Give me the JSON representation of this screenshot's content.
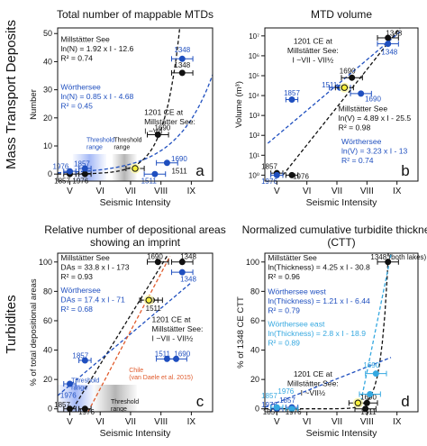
{
  "figure": {
    "row_labels": [
      "Mass Transport Deposits",
      "Turbidites"
    ],
    "colors": {
      "black": "#111111",
      "blue": "#1f4fbf",
      "light_blue": "#35a8e0",
      "red": "#e05a2b",
      "highlight": "#f6ef3a"
    }
  },
  "chart_data": [
    {
      "panel": "a",
      "type": "scatter",
      "title": "Total number of mappable MTDs",
      "xlabel": "Seismic Intensity",
      "ylabel": "Number",
      "xlim": [
        4.6,
        9.7
      ],
      "ylim": [
        -2.5,
        52
      ],
      "xticks": [
        5,
        6,
        7,
        8,
        9
      ],
      "xticklabels": [
        "V",
        "VI",
        "VII",
        "VIII",
        "IX"
      ],
      "yticks": [
        0,
        10,
        20,
        30,
        40,
        50
      ],
      "yticklabels": [
        "0",
        "10",
        "20",
        "30",
        "40",
        "50"
      ],
      "annotations": [
        {
          "text": [
            "Millstätter See",
            "ln(N) = 1.92 x I - 12.6",
            "R² = 0.74"
          ],
          "color": "black",
          "dx": 4.7,
          "dy": 47
        },
        {
          "text": [
            "Wörthersee",
            "ln(N) = 0.85 x I - 4.68",
            "R² = 0.45"
          ],
          "color": "blue",
          "dx": 4.7,
          "dy": 30
        },
        {
          "text": [
            "1201 CE at",
            "Millstätter See:",
            "I ~VII"
          ],
          "color": "black",
          "dx": 7.45,
          "dy": 21
        },
        {
          "text": [
            "Threshold",
            "range"
          ],
          "color": "blue",
          "dx": 5.55,
          "dy": 11.5
        },
        {
          "text": [
            "Threshold",
            "range"
          ],
          "color": "black",
          "dx": 6.45,
          "dy": 11.5
        }
      ],
      "series": [
        {
          "name": "Millstätter See",
          "color": "black",
          "points": [
            {
              "label": "1857",
              "x": 5.0,
              "y": 0,
              "xerr": 0.2,
              "lx": 4.75,
              "ly": -2.4
            },
            {
              "label": "1976",
              "x": 5.5,
              "y": 0,
              "xerr": 0.2,
              "lx": 5.35,
              "ly": -2.4
            },
            {
              "label": "1690",
              "x": 7.9,
              "y": 14,
              "xerr": 0.35,
              "lx": 8.05,
              "ly": 16.5
            },
            {
              "label": "1348",
              "x": 8.7,
              "y": 36,
              "xerr": 0.35,
              "lx": 8.7,
              "ly": 38.8
            }
          ]
        },
        {
          "name": "Wörthersee",
          "color": "blue",
          "points": [
            {
              "label": "1976",
              "x": 5.0,
              "y": 1,
              "xerr": 0.2,
              "lx": 4.7,
              "ly": 2.8
            },
            {
              "label": "1857",
              "x": 5.5,
              "y": 2,
              "xerr": 0.2,
              "lx": 5.4,
              "ly": 3.8
            },
            {
              "label": "1511",
              "x": 7.8,
              "y": 0,
              "xerr": 0.35,
              "lx": 7.6,
              "ly": -2.4
            },
            {
              "label": "1690",
              "x": 8.2,
              "y": 4,
              "xerr": 0.35,
              "lx": 8.6,
              "ly": 5.5
            },
            {
              "label": "1348",
              "x": 8.7,
              "y": 41,
              "xerr": 0.35,
              "lx": 8.7,
              "ly": 44.3
            }
          ]
        },
        {
          "name": "1201 CE",
          "color": "highlight",
          "points": [
            {
              "label": "",
              "x": 7.15,
              "y": 2,
              "xerr": 0.3
            }
          ]
        }
      ],
      "extra_labels": [
        {
          "text": "1511",
          "x": 8.35,
          "y": 1.2,
          "color": "black"
        }
      ],
      "fits": [
        {
          "color": "black",
          "kind": "exp",
          "a": 1.92,
          "b": -12.6
        },
        {
          "color": "blue",
          "kind": "exp",
          "a": 0.85,
          "b": -4.68
        }
      ],
      "threshold_bands": [
        {
          "x0": 5.1,
          "x1": 6.2,
          "color": "blue"
        },
        {
          "x0": 6.4,
          "x1": 7.2,
          "color": "gray"
        }
      ]
    },
    {
      "panel": "b",
      "type": "scatter",
      "title": "MTD volume",
      "xlabel": "Seismic Intensity",
      "ylabel": "Volume (m³)",
      "xlim": [
        4.6,
        9.7
      ],
      "ylim": [
        -0.3,
        7.4
      ],
      "ylog": true,
      "xticks": [
        5,
        6,
        7,
        8,
        9
      ],
      "xticklabels": [
        "V",
        "VI",
        "VII",
        "VIII",
        "IX"
      ],
      "yticks": [
        0,
        1,
        2,
        3,
        4,
        5,
        6,
        7
      ],
      "yticklabels": [
        "10⁰",
        "10¹",
        "10²",
        "10³",
        "10⁴",
        "10⁵",
        "10⁶",
        "10⁷"
      ],
      "annotations": [
        {
          "text": [
            "1201 CE at",
            "Millstätter See:",
            "I ~VII - VII½"
          ],
          "color": "black",
          "dx": 6.2,
          "dy": 6.6
        },
        {
          "text": [
            "Millstätter See",
            "ln(V) = 4.89 x I - 25.5",
            "R² = 0.98"
          ],
          "color": "black",
          "dx": 7.05,
          "dy": 3.2
        },
        {
          "text": [
            "Wörthersee",
            "ln(V) = 3.23 x I - 13",
            "R² = 0.74"
          ],
          "color": "blue",
          "dx": 7.15,
          "dy": 1.55
        }
      ],
      "series": [
        {
          "name": "Millstätter See",
          "color": "black",
          "points": [
            {
              "label": "1857",
              "x": 5.0,
              "y": 0.1,
              "xerr": 0.2,
              "lx": 4.75,
              "ly": 0.45
            },
            {
              "label": "1976",
              "x": 5.5,
              "y": 0.0,
              "xerr": 0.2,
              "lx": 5.8,
              "ly": -0.05
            },
            {
              "label": "1690",
              "x": 7.5,
              "y": 4.9,
              "xerr": 0.35,
              "lx": 7.35,
              "ly": 5.25
            },
            {
              "label": "1348",
              "x": 8.7,
              "y": 6.9,
              "xerr": 0.35,
              "lx": 8.9,
              "ly": 7.15
            }
          ]
        },
        {
          "name": "Wörthersee",
          "color": "blue",
          "points": [
            {
              "label": "1976",
              "x": 5.0,
              "y": 0.0,
              "xerr": 0.2,
              "lx": 4.75,
              "ly": -0.3
            },
            {
              "label": "1857",
              "x": 5.5,
              "y": 3.8,
              "xerr": 0.2,
              "lx": 5.5,
              "ly": 4.15
            },
            {
              "label": "1511",
              "x": 7.1,
              "y": 4.4,
              "xerr": 0.35,
              "lx": 6.75,
              "ly": 4.55
            },
            {
              "label": "1690",
              "x": 7.8,
              "y": 4.1,
              "xerr": 0.35,
              "lx": 8.2,
              "ly": 3.85
            },
            {
              "label": "1348",
              "x": 8.7,
              "y": 6.6,
              "xerr": 0.35,
              "lx": 8.75,
              "ly": 6.2
            }
          ]
        },
        {
          "name": "1201 CE",
          "color": "highlight",
          "points": [
            {
              "label": "",
              "x": 7.25,
              "y": 4.4,
              "xerr": 0.3
            }
          ]
        }
      ],
      "extra_labels": [],
      "fits": [
        {
          "color": "black",
          "kind": "line",
          "x0": 5.2,
          "y0": 0.0,
          "x1": 9.1,
          "y1": 7.4
        },
        {
          "color": "blue",
          "kind": "line",
          "x0": 4.7,
          "y0": 1.6,
          "x1": 9.1,
          "y1": 7.2
        }
      ],
      "threshold_bands": []
    },
    {
      "panel": "c",
      "type": "scatter",
      "title": "Relative number of depositional areas showing an imprint",
      "xlabel": "Seismic Intensity",
      "ylabel": "% of total depositional areas",
      "xlim": [
        4.6,
        9.7
      ],
      "ylim": [
        -2,
        106
      ],
      "xticks": [
        5,
        6,
        7,
        8,
        9
      ],
      "xticklabels": [
        "V",
        "VI",
        "VII",
        "VIII",
        "IX"
      ],
      "yticks": [
        0,
        20,
        40,
        60,
        80,
        100
      ],
      "yticklabels": [
        "0",
        "20",
        "40",
        "60",
        "80",
        "100"
      ],
      "annotations": [
        {
          "text": [
            "Millstätter See",
            "DAs = 33.8 x I - 173",
            "R² = 0.93"
          ],
          "color": "black",
          "dx": 4.7,
          "dy": 101
        },
        {
          "text": [
            "Wörthersee",
            "DAs = 17.4 x I - 71",
            "R² = 0.68"
          ],
          "color": "blue",
          "dx": 4.7,
          "dy": 79
        },
        {
          "text": [
            "1201 CE at",
            "Millstätter See:",
            "I ~VII - VII½"
          ],
          "color": "black",
          "dx": 7.7,
          "dy": 59
        },
        {
          "text": [
            "Chile",
            "(van Daele et al. 2015)"
          ],
          "color": "red",
          "dx": 6.95,
          "dy": 25
        },
        {
          "text": [
            "Threshold",
            "range"
          ],
          "color": "blue",
          "dx": 5.05,
          "dy": 18
        },
        {
          "text": [
            "Threshold",
            "range"
          ],
          "color": "black",
          "dx": 6.35,
          "dy": 3.5
        }
      ],
      "series": [
        {
          "name": "Millstätter See",
          "color": "black",
          "points": [
            {
              "label": "1857",
              "x": 5.0,
              "y": 0,
              "xerr": 0.2,
              "lx": 4.75,
              "ly": 3
            },
            {
              "label": "1976",
              "x": 5.5,
              "y": 0,
              "xerr": 0.2,
              "lx": 5.55,
              "ly": -4
            },
            {
              "label": "1511",
              "x": 7.7,
              "y": 74,
              "xerr": 0.35,
              "lx": 7.75,
              "ly": 68.5
            },
            {
              "label": "1690",
              "x": 7.9,
              "y": 100,
              "xerr": 0.35,
              "lx": 7.8,
              "ly": 104
            },
            {
              "label": "1348",
              "x": 8.7,
              "y": 100,
              "xerr": 0.35,
              "lx": 8.9,
              "ly": 104
            }
          ]
        },
        {
          "name": "Wörthersee",
          "color": "blue",
          "points": [
            {
              "label": "1976",
              "x": 5.0,
              "y": 17,
              "xerr": 0.2,
              "lx": 4.95,
              "ly": 9.5
            },
            {
              "label": "1857",
              "x": 5.5,
              "y": 33,
              "xerr": 0.2,
              "lx": 5.35,
              "ly": 36.5
            },
            {
              "label": "1511",
              "x": 8.2,
              "y": 34,
              "xerr": 0.35,
              "lx": 8.05,
              "ly": 37.5
            },
            {
              "label": "1690",
              "x": 8.5,
              "y": 34,
              "xerr": 0.35,
              "lx": 8.7,
              "ly": 37.5
            },
            {
              "label": "1348",
              "x": 8.7,
              "y": 93,
              "xerr": 0.35,
              "lx": 8.9,
              "ly": 88.5
            }
          ]
        },
        {
          "name": "1201 CE",
          "color": "highlight",
          "points": [
            {
              "label": "",
              "x": 7.6,
              "y": 74,
              "xerr": 0.3
            }
          ]
        }
      ],
      "extra_labels": [],
      "fits": [
        {
          "color": "black",
          "kind": "line",
          "x0": 5.1,
          "y0": 0,
          "x1": 8.2,
          "y1": 104
        },
        {
          "color": "blue",
          "kind": "line",
          "x0": 4.6,
          "y0": 9,
          "x1": 9.0,
          "y1": 86
        },
        {
          "color": "red",
          "kind": "line",
          "x0": 5.6,
          "y0": -2,
          "x1": 8.3,
          "y1": 104
        }
      ],
      "threshold_bands": [
        {
          "x0": 4.6,
          "x1": 5.8,
          "color": "blue"
        },
        {
          "x0": 5.8,
          "x1": 7.2,
          "color": "gray"
        }
      ]
    },
    {
      "panel": "d",
      "type": "scatter",
      "title": "Normalized cumulative turbidite thickness (CTT)",
      "xlabel": "Seismic Intensity",
      "ylabel": "% of 1348 CE CTT",
      "xlim": [
        4.6,
        9.7
      ],
      "ylim": [
        -2,
        106
      ],
      "xticks": [
        5,
        6,
        7,
        8,
        9
      ],
      "xticklabels": [
        "V",
        "VI",
        "VII",
        "VIII",
        "IX"
      ],
      "yticks": [
        0,
        20,
        40,
        60,
        80,
        100
      ],
      "yticklabels": [
        "0",
        "20",
        "40",
        "60",
        "80",
        "100"
      ],
      "annotations": [
        {
          "text": [
            "Millstätter See",
            "ln(Thickness) = 4.25 x I - 30.8",
            "R² = 0.96"
          ],
          "color": "black",
          "dx": 4.7,
          "dy": 101
        },
        {
          "text": [
            "Wörthersee west",
            "ln(Thickness) = 1.21 x I - 6.44",
            "R² = 0.79"
          ],
          "color": "blue",
          "dx": 4.7,
          "dy": 78
        },
        {
          "text": [
            "Wörthersee east",
            "ln(Thickness) = 2.8 x I - 18.9",
            "R² = 0.89"
          ],
          "color": "light_blue",
          "dx": 4.7,
          "dy": 56
        },
        {
          "text": [
            "1201 CE at",
            "Millstätter See:",
            "I ~VII½"
          ],
          "color": "black",
          "dx": 6.2,
          "dy": 22
        }
      ],
      "series": [
        {
          "name": "Millstätter See",
          "color": "black",
          "points": [
            {
              "label": "1857",
              "x": 5.0,
              "y": 0,
              "xerr": 0.2,
              "lx": 4.8,
              "ly": -4
            },
            {
              "label": "1976",
              "x": 5.5,
              "y": 0,
              "xerr": 0.2,
              "lx": 5.55,
              "ly": -4
            },
            {
              "label": "1690",
              "x": 8.0,
              "y": 4,
              "xerr": 0.35,
              "lx": 8.05,
              "ly": 8
            },
            {
              "label": "1511",
              "x": 7.95,
              "y": 0,
              "xerr": 0.35,
              "lx": 8.05,
              "ly": -4
            }
          ]
        },
        {
          "name": "Wörthersee west",
          "color": "blue",
          "points": [
            {
              "label": "1976",
              "x": 5.0,
              "y": 0,
              "xerr": 0.2,
              "lx": 4.75,
              "ly": 3
            },
            {
              "label": "1857",
              "x": 5.5,
              "y": 1,
              "xerr": 0.2,
              "lx": 5.35,
              "ly": 6
            }
          ]
        },
        {
          "name": "Wörthersee east",
          "color": "light_blue",
          "points": [
            {
              "label": "1857",
              "x": 5.0,
              "y": 1,
              "xerr": 0.2,
              "lx": 4.75,
              "ly": 9
            },
            {
              "label": "1976",
              "x": 5.5,
              "y": 0,
              "xerr": 0.2,
              "lx": 5.3,
              "ly": 12
            },
            {
              "label": "1690",
              "x": 8.3,
              "y": 24,
              "xerr": 0.35,
              "lx": 8.15,
              "ly": 30
            },
            {
              "label": "",
              "x": 8.1,
              "y": 10,
              "xerr": 0.35
            }
          ]
        },
        {
          "name": "Both lakes",
          "color": "black",
          "points": [
            {
              "label": "1348 (both lakes)",
              "x": 8.7,
              "y": 100,
              "xerr": 0.35,
              "lx": 9.05,
              "ly": 103.5
            }
          ]
        },
        {
          "name": "1201 CE",
          "color": "highlight",
          "points": [
            {
              "label": "",
              "x": 7.7,
              "y": 4,
              "xerr": 0.3
            }
          ]
        }
      ],
      "extra_labels": [],
      "fits": [
        {
          "color": "black",
          "kind": "exp",
          "a": 4.25,
          "b": -30.8,
          "scale": 100,
          "ref": 8.7
        },
        {
          "color": "blue",
          "kind": "line",
          "x0": 4.6,
          "y0": 1,
          "x1": 8.8,
          "y1": 35
        },
        {
          "color": "light_blue",
          "kind": "line",
          "x0": 7.8,
          "y0": 5,
          "x1": 8.8,
          "y1": 105
        }
      ],
      "threshold_bands": []
    }
  ]
}
